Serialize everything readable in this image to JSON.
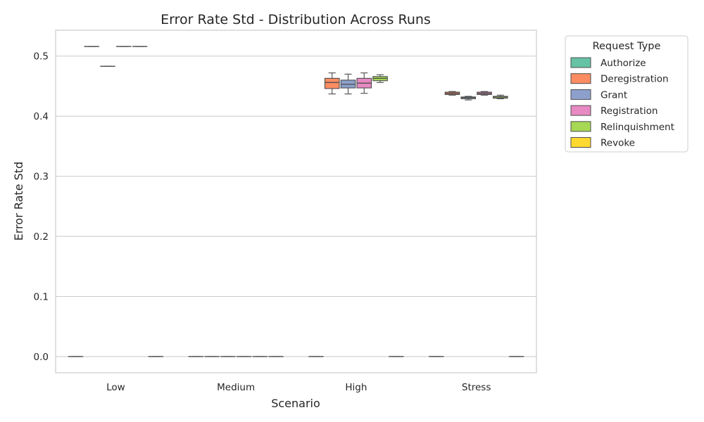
{
  "chart_data": {
    "type": "box",
    "title": "Error Rate Std - Distribution Across Runs",
    "xlabel": "Scenario",
    "ylabel": "Error Rate Std",
    "ylim": [
      -0.027,
      0.543
    ],
    "yticks": [
      0.0,
      0.1,
      0.2,
      0.3,
      0.4,
      0.5
    ],
    "ytick_labels": [
      "0.0",
      "0.1",
      "0.2",
      "0.3",
      "0.4",
      "0.5"
    ],
    "grid": true,
    "categories": [
      "Low",
      "Medium",
      "High",
      "Stress"
    ],
    "legend": {
      "title": "Request Type",
      "placement": "outside-top-right"
    },
    "series": [
      {
        "name": "Authorize",
        "color": "#66c2a5",
        "boxes": [
          {
            "min": 0.0,
            "q1": 0.0,
            "median": 0.0,
            "q3": 0.0,
            "max": 0.0
          },
          {
            "min": 0.0,
            "q1": 0.0,
            "median": 0.0,
            "q3": 0.0,
            "max": 0.0
          },
          {
            "min": 0.0,
            "q1": 0.0,
            "median": 0.0,
            "q3": 0.0,
            "max": 0.0
          },
          {
            "min": 0.0,
            "q1": 0.0,
            "median": 0.0,
            "q3": 0.0,
            "max": 0.0
          }
        ]
      },
      {
        "name": "Deregistration",
        "color": "#fc8d62",
        "boxes": [
          {
            "min": 0.516,
            "q1": 0.516,
            "median": 0.516,
            "q3": 0.516,
            "max": 0.516
          },
          {
            "min": 0.0,
            "q1": 0.0,
            "median": 0.0,
            "q3": 0.0,
            "max": 0.0
          },
          {
            "min": 0.437,
            "q1": 0.446,
            "median": 0.456,
            "q3": 0.463,
            "max": 0.472
          },
          {
            "min": 0.435,
            "q1": 0.436,
            "median": 0.438,
            "q3": 0.44,
            "max": 0.441
          }
        ]
      },
      {
        "name": "Grant",
        "color": "#8da0cb",
        "boxes": [
          {
            "min": 0.483,
            "q1": 0.483,
            "median": 0.483,
            "q3": 0.483,
            "max": 0.483
          },
          {
            "min": 0.0,
            "q1": 0.0,
            "median": 0.0,
            "q3": 0.0,
            "max": 0.0
          },
          {
            "min": 0.437,
            "q1": 0.447,
            "median": 0.453,
            "q3": 0.46,
            "max": 0.47
          },
          {
            "min": 0.427,
            "q1": 0.429,
            "median": 0.431,
            "q3": 0.432,
            "max": 0.433
          }
        ]
      },
      {
        "name": "Registration",
        "color": "#e78ac3",
        "boxes": [
          {
            "min": 0.516,
            "q1": 0.516,
            "median": 0.516,
            "q3": 0.516,
            "max": 0.516
          },
          {
            "min": 0.0,
            "q1": 0.0,
            "median": 0.0,
            "q3": 0.0,
            "max": 0.0
          },
          {
            "min": 0.438,
            "q1": 0.447,
            "median": 0.455,
            "q3": 0.463,
            "max": 0.472
          },
          {
            "min": 0.435,
            "q1": 0.436,
            "median": 0.438,
            "q3": 0.44,
            "max": 0.441
          }
        ]
      },
      {
        "name": "Relinquishment",
        "color": "#a6d854",
        "boxes": [
          {
            "min": 0.516,
            "q1": 0.516,
            "median": 0.516,
            "q3": 0.516,
            "max": 0.516
          },
          {
            "min": 0.0,
            "q1": 0.0,
            "median": 0.0,
            "q3": 0.0,
            "max": 0.0
          },
          {
            "min": 0.456,
            "q1": 0.459,
            "median": 0.463,
            "q3": 0.466,
            "max": 0.469
          },
          {
            "min": 0.429,
            "q1": 0.43,
            "median": 0.432,
            "q3": 0.433,
            "max": 0.435
          }
        ]
      },
      {
        "name": "Revoke",
        "color": "#ffd92f",
        "boxes": [
          {
            "min": 0.0,
            "q1": 0.0,
            "median": 0.0,
            "q3": 0.0,
            "max": 0.0
          },
          {
            "min": 0.0,
            "q1": 0.0,
            "median": 0.0,
            "q3": 0.0,
            "max": 0.0
          },
          {
            "min": 0.0,
            "q1": 0.0,
            "median": 0.0,
            "q3": 0.0,
            "max": 0.0
          },
          {
            "min": 0.0,
            "q1": 0.0,
            "median": 0.0,
            "q3": 0.0,
            "max": 0.0
          }
        ]
      }
    ]
  }
}
